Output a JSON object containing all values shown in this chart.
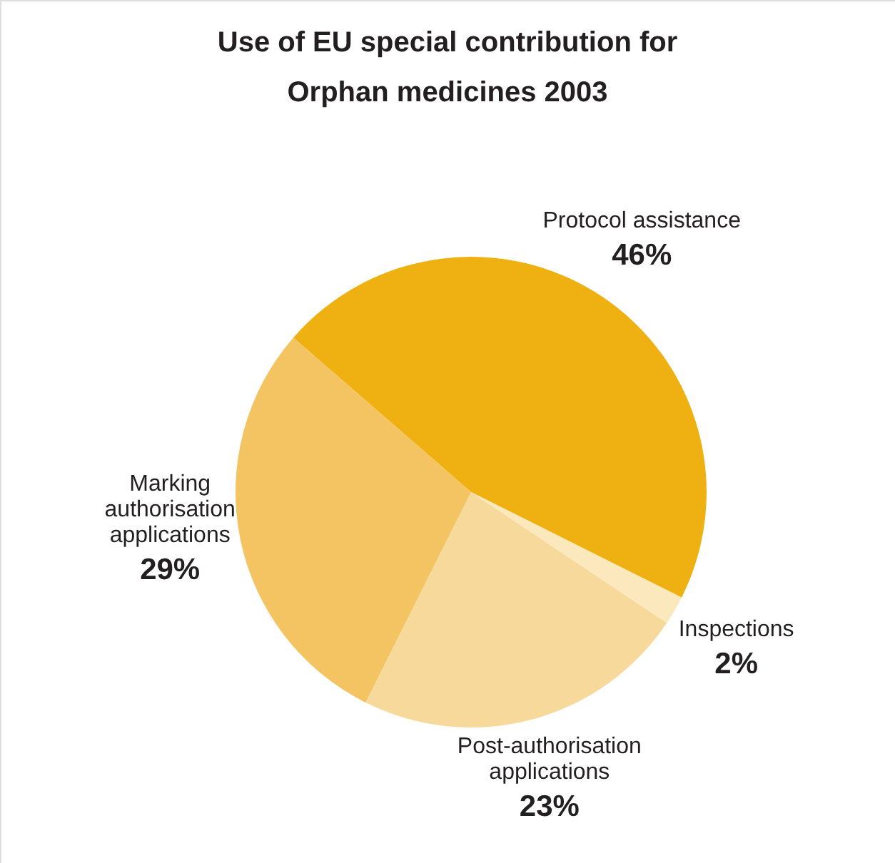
{
  "chart_data": {
    "type": "pie",
    "title": "Use of EU special contribution for\nOrphan medicines 2003",
    "categories": [
      "Protocol assistance",
      "Inspections",
      "Post-authorisation\napplications",
      "Marking\nauthorisation\napplications"
    ],
    "values": [
      46,
      2,
      23,
      29
    ],
    "colors": [
      "#eeb111",
      "#fbe8bd",
      "#f8d99c",
      "#f4c462"
    ],
    "value_labels": [
      "46%",
      "2%",
      "23%",
      "29%"
    ]
  }
}
